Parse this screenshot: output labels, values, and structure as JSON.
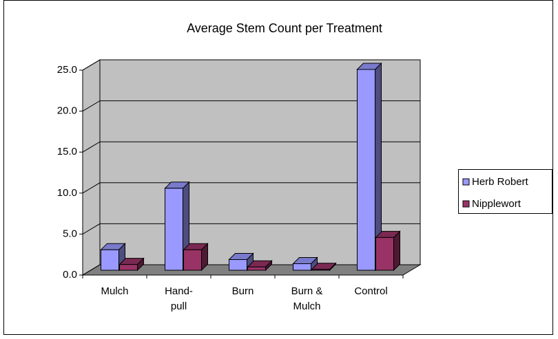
{
  "chart_data": {
    "type": "bar3d",
    "title": "Average Stem Count per Treatment",
    "categories": [
      [
        "Mulch"
      ],
      [
        "Hand-",
        "pull"
      ],
      [
        "Burn"
      ],
      [
        "Burn &",
        "Mulch"
      ],
      [
        "Control"
      ]
    ],
    "series": [
      {
        "name": "Herb Robert",
        "color": "#9999ff",
        "values": [
          2.5,
          10.0,
          1.3,
          0.8,
          24.5
        ]
      },
      {
        "name": "Nipplewort",
        "color": "#993366",
        "values": [
          0.7,
          2.5,
          0.4,
          0.1,
          4.0
        ]
      }
    ],
    "ylim": [
      0,
      25
    ],
    "yticks": [
      {
        "value": 0,
        "label": "0.0"
      },
      {
        "value": 5,
        "label": "5.0"
      },
      {
        "value": 10,
        "label": "10.0"
      },
      {
        "value": 15,
        "label": "15.0"
      },
      {
        "value": 20,
        "label": "20.0"
      },
      {
        "value": 25,
        "label": "25.0"
      }
    ],
    "grid": true,
    "legend": "right"
  }
}
